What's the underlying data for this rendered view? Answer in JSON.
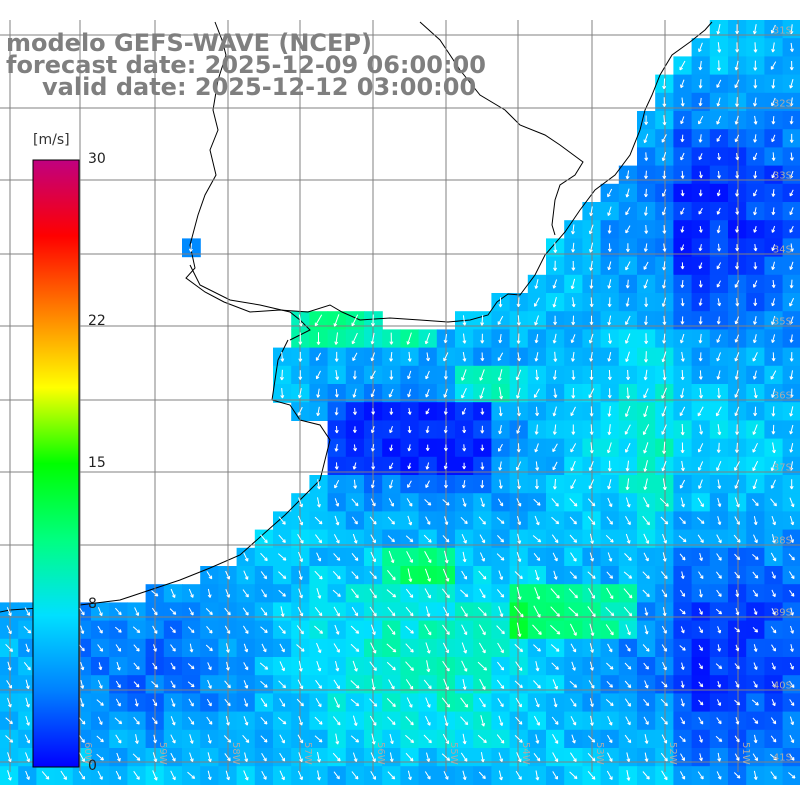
{
  "title": {
    "line1": "modelo GEFS-WAVE (NCEP)",
    "line2": "forecast date: 2025-12-09 06:00:00",
    "line3": "valid date: 2025-12-12 03:00:00"
  },
  "colorbar": {
    "unit": "[m/s]",
    "min": 0,
    "max": 30,
    "ticks": [
      "30",
      "22",
      "15",
      "8",
      "0"
    ],
    "tick_values": [
      30,
      22,
      15,
      8,
      0
    ],
    "colors": [
      "#0000ff",
      "#0080ff",
      "#00e0ff",
      "#00ff80",
      "#00ff00",
      "#ffff00",
      "#ff8000",
      "#ff0000",
      "#c00080"
    ]
  },
  "map": {
    "lat_labels": [
      "31S",
      "32S",
      "33S",
      "34S",
      "35S",
      "36S",
      "37S",
      "38S",
      "39S",
      "40S",
      "41S"
    ],
    "lon_labels": [
      "60W",
      "59W",
      "58W",
      "57W",
      "56W",
      "55W",
      "54W",
      "53W",
      "52W",
      "51W"
    ],
    "colors": {
      "land": "#ffffff",
      "grid": "#808080",
      "coastline": "#000000",
      "arrows": "#ffffff",
      "label": "#aaaaaa"
    }
  }
}
